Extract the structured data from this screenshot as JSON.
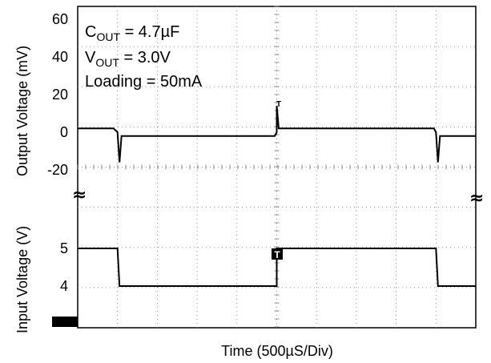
{
  "chart_data": [
    {
      "type": "line",
      "panel": "output",
      "ylabel": "Output Voltage  (mV)",
      "ylim": [
        -25,
        62
      ],
      "yticks": [
        60,
        40,
        20,
        0,
        -20
      ],
      "xlabel": "",
      "grid": true,
      "series": [
        {
          "values": [
            [
              0,
              2
            ],
            [
              0.18,
              2
            ],
            [
              0.2,
              0
            ],
            [
              0.21,
              -16
            ],
            [
              0.22,
              -2
            ],
            [
              0.3,
              -2
            ],
            [
              0.5,
              -2
            ],
            [
              0.99,
              -2
            ],
            [
              1.0,
              0
            ],
            [
              1.0,
              14
            ],
            [
              1.01,
              2
            ],
            [
              1.1,
              2
            ],
            [
              1.5,
              2
            ],
            [
              1.79,
              2
            ],
            [
              1.8,
              0
            ],
            [
              1.81,
              -16
            ],
            [
              1.82,
              -2
            ],
            [
              2.0,
              -2
            ]
          ]
        }
      ]
    },
    {
      "type": "line",
      "panel": "input",
      "ylabel": "Input Voltage (V)",
      "ylim": [
        3.2,
        6.0
      ],
      "yticks": [
        5,
        4
      ],
      "xlabel": "Time (500µS/Div)",
      "grid": true,
      "series": [
        {
          "values": [
            [
              0,
              5
            ],
            [
              0.2,
              5
            ],
            [
              0.21,
              4
            ],
            [
              1.0,
              4
            ],
            [
              1.0,
              5
            ],
            [
              1.8,
              5
            ],
            [
              1.81,
              4
            ],
            [
              2.0,
              4
            ]
          ]
        }
      ]
    }
  ],
  "annotations": {
    "cout_main": "C",
    "cout_sub": "OUT",
    "cout_rest": " = 4.7µF",
    "vout_main": "V",
    "vout_sub": "OUT",
    "vout_rest": " = 3.0V",
    "loading": "Loading = 50mA"
  },
  "markers": {
    "trigger": "T",
    "break_symbol": "≈"
  }
}
